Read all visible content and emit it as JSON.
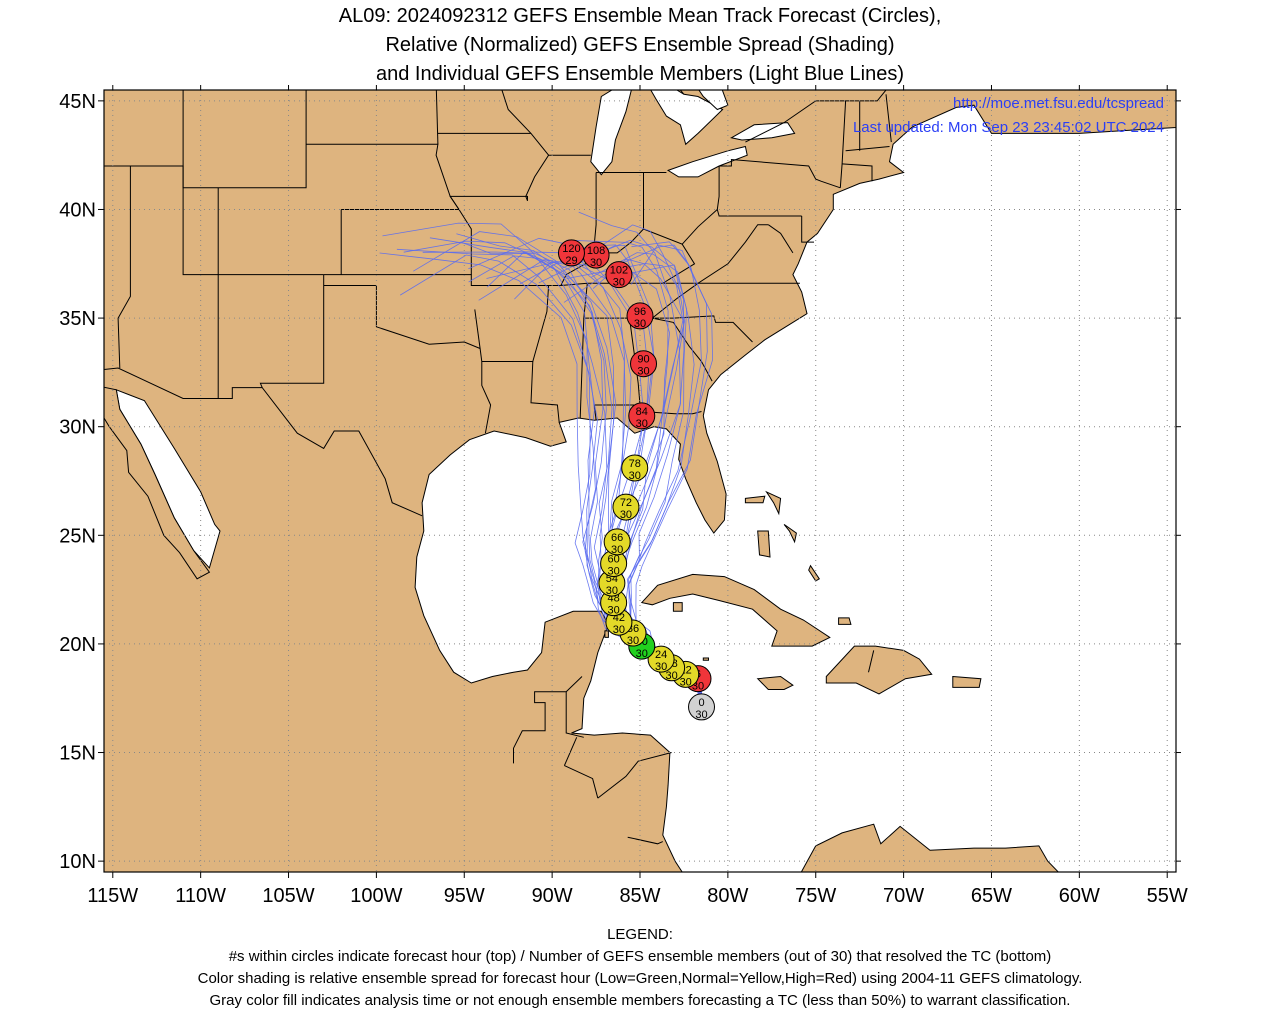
{
  "title": {
    "line1": "AL09: 2024092312 GEFS Ensemble Mean Track Forecast (Circles),",
    "line2": "Relative (Normalized) GEFS Ensemble Spread (Shading)",
    "line3": "and Individual GEFS Ensemble Members (Light Blue Lines)"
  },
  "credits": {
    "url": "http://moe.met.fsu.edu/tcspread",
    "updated": "Last updated: Mon Sep 23 23:45:02 UTC 2024"
  },
  "map": {
    "lon_range": [
      -115.5,
      -54.5
    ],
    "lat_range": [
      9.5,
      45.5
    ],
    "lon_ticks": [
      -115,
      -110,
      -105,
      -100,
      -95,
      -90,
      -85,
      -80,
      -75,
      -70,
      -65,
      -60,
      -55
    ],
    "lon_labels": [
      "115W",
      "110W",
      "105W",
      "100W",
      "95W",
      "90W",
      "85W",
      "80W",
      "75W",
      "70W",
      "65W",
      "60W",
      "55W"
    ],
    "lat_ticks": [
      10,
      15,
      20,
      25,
      30,
      35,
      40,
      45
    ],
    "lat_labels": [
      "10N",
      "15N",
      "20N",
      "25N",
      "30N",
      "35N",
      "40N",
      "45N"
    ],
    "land_color": "#deb47f",
    "ocean_color": "#ffffff",
    "member_line_color": "#5a6cf0",
    "grid": true
  },
  "track": [
    {
      "hour": "0",
      "members": "30",
      "lon": -81.5,
      "lat": 17.1,
      "spread": "gray"
    },
    {
      "hour": "6",
      "members": "30",
      "lon": -81.7,
      "lat": 18.4,
      "spread": "high"
    },
    {
      "hour": "12",
      "members": "30",
      "lon": -82.4,
      "lat": 18.6,
      "spread": "normal"
    },
    {
      "hour": "18",
      "members": "30",
      "lon": -83.2,
      "lat": 18.9,
      "spread": "normal"
    },
    {
      "hour": "24",
      "members": "30",
      "lon": -83.8,
      "lat": 19.3,
      "spread": "normal"
    },
    {
      "hour": "30",
      "members": "30",
      "lon": -84.9,
      "lat": 19.9,
      "spread": "low"
    },
    {
      "hour": "36",
      "members": "30",
      "lon": -85.4,
      "lat": 20.5,
      "spread": "normal"
    },
    {
      "hour": "42",
      "members": "30",
      "lon": -86.2,
      "lat": 21.0,
      "spread": "normal"
    },
    {
      "hour": "48",
      "members": "30",
      "lon": -86.5,
      "lat": 21.9,
      "spread": "normal"
    },
    {
      "hour": "54",
      "members": "30",
      "lon": -86.6,
      "lat": 22.8,
      "spread": "normal"
    },
    {
      "hour": "60",
      "members": "30",
      "lon": -86.5,
      "lat": 23.7,
      "spread": "normal"
    },
    {
      "hour": "66",
      "members": "30",
      "lon": -86.3,
      "lat": 24.7,
      "spread": "normal"
    },
    {
      "hour": "72",
      "members": "30",
      "lon": -85.8,
      "lat": 26.3,
      "spread": "normal"
    },
    {
      "hour": "78",
      "members": "30",
      "lon": -85.3,
      "lat": 28.1,
      "spread": "normal"
    },
    {
      "hour": "84",
      "members": "30",
      "lon": -84.9,
      "lat": 30.5,
      "spread": "high"
    },
    {
      "hour": "90",
      "members": "30",
      "lon": -84.8,
      "lat": 32.9,
      "spread": "high"
    },
    {
      "hour": "96",
      "members": "30",
      "lon": -85.0,
      "lat": 35.1,
      "spread": "high"
    },
    {
      "hour": "102",
      "members": "30",
      "lon": -86.2,
      "lat": 37.0,
      "spread": "high"
    },
    {
      "hour": "108",
      "members": "30",
      "lon": -87.5,
      "lat": 37.9,
      "spread": "high"
    },
    {
      "hour": "120",
      "members": "29",
      "lon": -88.9,
      "lat": 38.0,
      "spread": "high"
    }
  ],
  "spread_colors": {
    "low": "#22d11f",
    "normal": "#e3d928",
    "high": "#f0353a",
    "gray": "#d2d2d2"
  },
  "legend": {
    "heading": "LEGEND:",
    "line1": "#s within circles indicate forecast hour (top) / Number of GEFS ensemble members (out of 30) that resolved the TC (bottom)",
    "line2": "Color shading is relative ensemble spread for forecast hour (Low=Green,Normal=Yellow,High=Red) using 2004-11 GEFS climatology.",
    "line3": "Gray color fill indicates analysis time or not enough ensemble members forecasting a TC (less than 50%) to warrant classification."
  }
}
